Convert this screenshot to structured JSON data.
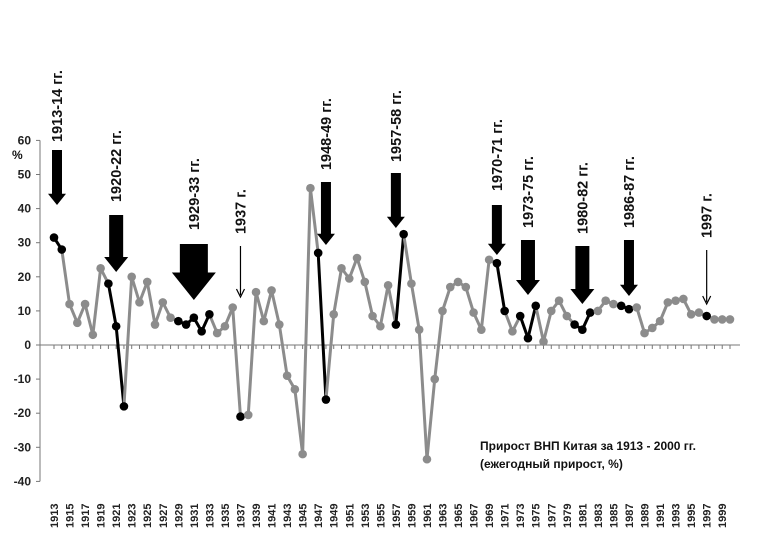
{
  "chart_data": {
    "type": "line",
    "ylabel": "%",
    "ylim": [
      -40,
      60
    ],
    "yticks": [
      "60",
      "50",
      "40",
      "30",
      "20",
      "10",
      "0",
      "-10",
      "-20",
      "-30",
      "-40"
    ],
    "xticks": [
      "1913",
      "1915",
      "1917",
      "1919",
      "1921",
      "1923",
      "1925",
      "1927",
      "1929",
      "1931",
      "1933",
      "1935",
      "1937",
      "1939",
      "1941",
      "1943",
      "1945",
      "1947",
      "1949",
      "1951",
      "1953",
      "1955",
      "1957",
      "1959",
      "1961",
      "1963",
      "1965",
      "1967",
      "1969",
      "1971",
      "1973",
      "1975",
      "1977",
      "1979",
      "1981",
      "1983",
      "1985",
      "1987",
      "1989",
      "1991",
      "1993",
      "1995",
      "1997",
      "1999"
    ],
    "grid": false,
    "annotation": {
      "line1": "Прирост ВНП Китая за 1913 - 2000 гг.",
      "line2": "(ежегодный прирост, %)"
    },
    "colors": {
      "normal": "#8c8c8c",
      "highlight": "#000000"
    },
    "series": [
      {
        "x": [
          1913,
          1914,
          1915,
          1916,
          1917,
          1918,
          1919,
          1920,
          1921,
          1922,
          1923,
          1924,
          1925,
          1926,
          1927,
          1928,
          1929,
          1930,
          1931,
          1932,
          1933,
          1934,
          1935,
          1936,
          1937,
          1938,
          1939,
          1940,
          1941,
          1942,
          1943,
          1944,
          1945,
          1946,
          1947,
          1948,
          1949,
          1950,
          1951,
          1952,
          1953,
          1954,
          1955,
          1956,
          1957,
          1958,
          1959,
          1960,
          1961,
          1962,
          1963,
          1964,
          1965,
          1966,
          1967,
          1968,
          1969,
          1970,
          1971,
          1972,
          1973,
          1974,
          1975,
          1976,
          1977,
          1978,
          1979,
          1980,
          1981,
          1982,
          1983,
          1984,
          1985,
          1986,
          1987,
          1988,
          1989,
          1990,
          1991,
          1992,
          1993,
          1994,
          1995,
          1996,
          1997,
          1998,
          1999,
          2000
        ],
        "values": [
          31.5,
          28,
          12,
          6.5,
          12,
          3,
          22.5,
          18,
          5.5,
          -18,
          20,
          12.5,
          18.5,
          6,
          12.5,
          8,
          7,
          6,
          8,
          4,
          9,
          3.5,
          5.5,
          11,
          -21,
          -20.5,
          15.5,
          7,
          16,
          6,
          -9,
          -13,
          -32,
          46,
          27,
          -16,
          9,
          22.5,
          19.5,
          25.5,
          18.5,
          8.5,
          5.5,
          17.5,
          6,
          32.5,
          18,
          4.5,
          -33.5,
          -10,
          10,
          17,
          18.5,
          17,
          9.5,
          4.5,
          25,
          24,
          10,
          4,
          8.5,
          2,
          11.5,
          1,
          10,
          13,
          8.5,
          6,
          4.5,
          9.5,
          10,
          13,
          12,
          11.5,
          10.5,
          11,
          3.5,
          5,
          7,
          12.5,
          13,
          13.5,
          9,
          9.5,
          8.5,
          7.5,
          7.5,
          7.5
        ],
        "highlight": [
          true,
          true,
          false,
          false,
          false,
          false,
          false,
          true,
          true,
          true,
          false,
          false,
          false,
          false,
          false,
          false,
          true,
          true,
          true,
          true,
          true,
          false,
          false,
          false,
          true,
          false,
          false,
          false,
          false,
          false,
          false,
          false,
          false,
          false,
          true,
          true,
          false,
          false,
          false,
          false,
          false,
          false,
          false,
          false,
          true,
          true,
          false,
          false,
          false,
          false,
          false,
          false,
          false,
          false,
          false,
          false,
          false,
          true,
          true,
          false,
          true,
          true,
          true,
          false,
          false,
          false,
          false,
          true,
          true,
          true,
          false,
          false,
          false,
          true,
          true,
          false,
          false,
          false,
          false,
          false,
          false,
          false,
          false,
          false,
          true,
          false,
          false,
          false
        ]
      }
    ],
    "periods": [
      {
        "label": "1913-14  гг.",
        "year": 1913,
        "size": "medium"
      },
      {
        "label": "1920-22 гг.",
        "year": 1921,
        "size": "large"
      },
      {
        "label": "1929-33  гг.",
        "year": 1931,
        "size": "xlarge"
      },
      {
        "label": "1937 г.",
        "year": 1937,
        "size": "thin"
      },
      {
        "label": "1948-49 гг.",
        "year": 1948,
        "size": "medium"
      },
      {
        "label": "1957-58 гг.",
        "year": 1957,
        "size": "medium"
      },
      {
        "label": "1970-71  гг.",
        "year": 1970,
        "size": "medium"
      },
      {
        "label": "1973-75 гг.",
        "year": 1974,
        "size": "large"
      },
      {
        "label": "1980-82 гг.",
        "year": 1981,
        "size": "large"
      },
      {
        "label": "1986-87 гг.",
        "year": 1987,
        "size": "medium"
      },
      {
        "label": "1997 г.",
        "year": 1997,
        "size": "thin"
      }
    ]
  }
}
